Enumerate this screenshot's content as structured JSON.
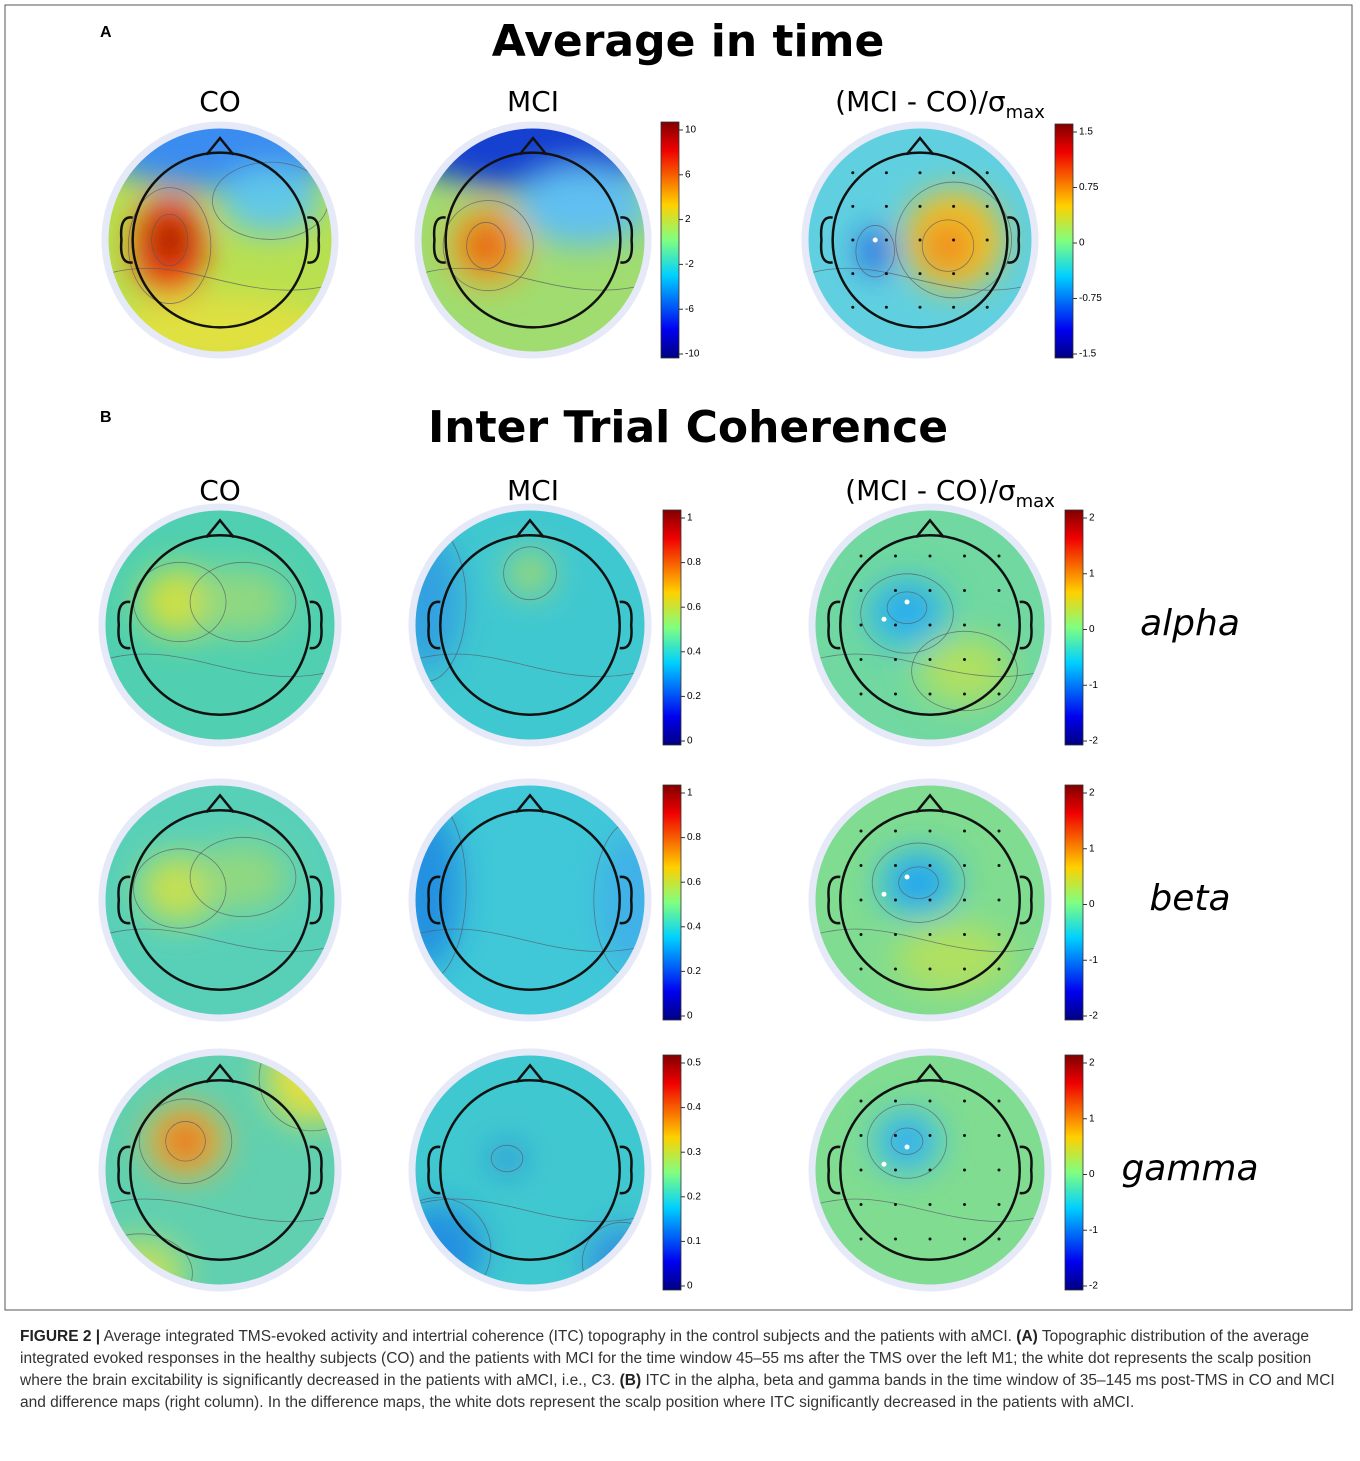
{
  "panel_a": {
    "label": "A",
    "title": "Average in time",
    "columns": {
      "co": "CO",
      "mci": "MCI",
      "diff": "(MCI - CO)/σ",
      "diff_sub": "max"
    },
    "colorbar": [
      10,
      6,
      2,
      -2,
      -6,
      -10
    ],
    "diff_colorbar": [
      1.5,
      0.75,
      0,
      -0.75,
      -1.5
    ]
  },
  "panel_b": {
    "label": "B",
    "title": "Inter Trial Coherence",
    "columns": {
      "co": "CO",
      "mci": "MCI",
      "diff": "(MCI - CO)/σ",
      "diff_sub": "max"
    },
    "rows": [
      {
        "band": "alpha",
        "colorbar": [
          1,
          0.8,
          0.6,
          0.4,
          0.2,
          0
        ],
        "diff_colorbar": [
          2,
          1,
          0,
          -1,
          -2
        ]
      },
      {
        "band": "beta",
        "colorbar": [
          1,
          0.8,
          0.6,
          0.4,
          0.2,
          0
        ],
        "diff_colorbar": [
          2,
          1,
          0,
          -1,
          -2
        ]
      },
      {
        "band": "gamma",
        "colorbar": [
          0.5,
          0.4,
          0.3,
          0.2,
          0.1,
          0
        ],
        "diff_colorbar": [
          2,
          1,
          0,
          -1,
          -2
        ]
      }
    ]
  },
  "caption": {
    "label": "FIGURE 2 |",
    "intro": "Average integrated TMS-evoked activity and intertrial coherence (ITC) topography in the control subjects and the patients with aMCI.",
    "a_label": "(A)",
    "a_text": "Topographic distribution of the average integrated evoked responses in the healthy subjects (CO) and the patients with MCI for the time window 45–55 ms after the TMS over the left M1; the white dot represents the scalp position where the brain excitability is significantly decreased in the patients with aMCI, i.e., C3.",
    "b_label": "(B)",
    "b_text": "ITC in the alpha, beta and gamma bands in the time window of 35–145 ms post-TMS in CO and MCI and difference maps (right column). In the difference maps, the white dots represent the scalp position where ITC significantly decreased in the patients with aMCI."
  }
}
